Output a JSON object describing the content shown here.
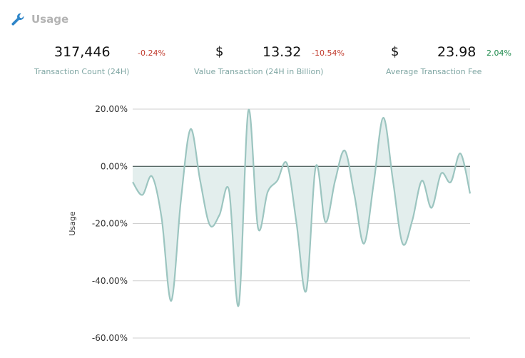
{
  "header": {
    "title": "Usage",
    "icon": "wrench-icon"
  },
  "stats": [
    {
      "value": "317,446",
      "change": "-0.24%",
      "label": "Transaction Count (24H)",
      "currency": ""
    },
    {
      "value": "13.32",
      "change": "-10.54%",
      "label": "Value Transaction (24H in Billion)",
      "currency": "$"
    },
    {
      "value": "23.98",
      "change": "2.04%",
      "label": "Average Transaction Fee",
      "currency": "$"
    }
  ],
  "colors": {
    "negative": "#c0392b",
    "positive": "#1e8a4c",
    "line": "#9cc5c0",
    "fill": "#e3eeed",
    "label": "#7fa6a3"
  },
  "chart_data": {
    "type": "area",
    "ylabel": "Usage",
    "ylim": [
      -60,
      20
    ],
    "yticks": [
      20,
      0,
      -20,
      -40,
      -60
    ],
    "ytick_labels": [
      "20.00%",
      "0.00%",
      "-20.00%",
      "-40.00%",
      "-60.00%"
    ],
    "grid": true,
    "values": [
      -5.5,
      -10,
      -3.5,
      -18,
      -47,
      -12,
      13,
      -5,
      -20.5,
      -17,
      -8.5,
      -48.5,
      19.5,
      -21.5,
      -9,
      -5,
      1,
      -20,
      -43.5,
      0,
      -19.5,
      -5,
      5.5,
      -10,
      -27,
      -6,
      17,
      -5,
      -27,
      -19,
      -5,
      -14.5,
      -2.5,
      -5.5,
      4.5,
      -9.5
    ]
  }
}
